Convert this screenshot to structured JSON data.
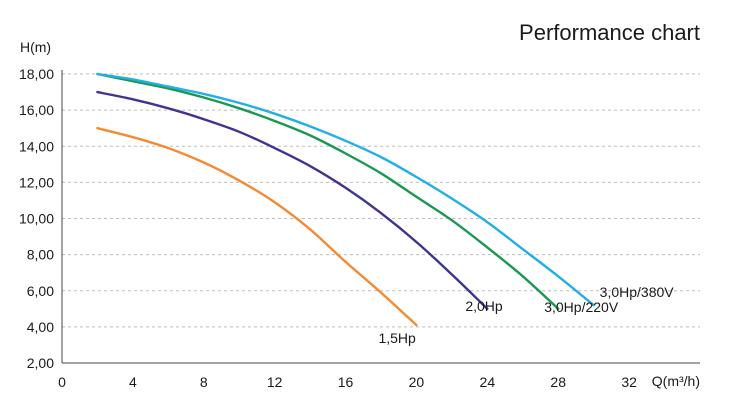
{
  "chart_data": {
    "type": "line",
    "title": "Performance chart",
    "ylabel": "H(m)",
    "xlabel": "Q(m³/h)",
    "xlim": [
      0,
      36
    ],
    "ylim": [
      2,
      18
    ],
    "x_ticks": [
      0,
      4,
      8,
      12,
      16,
      20,
      24,
      28,
      32
    ],
    "x_tick_labels": [
      "0",
      "4",
      "8",
      "12",
      "16",
      "20",
      "24",
      "28",
      "32"
    ],
    "y_ticks": [
      2,
      4,
      6,
      8,
      10,
      12,
      14,
      16,
      18
    ],
    "y_tick_labels": [
      "2,00",
      "4,00",
      "6,00",
      "8,00",
      "10,00",
      "12,00",
      "14,00",
      "16,00",
      "18,00"
    ],
    "grid": true,
    "series": [
      {
        "name": "1,5Hp",
        "color": "#f58a35",
        "x": [
          2,
          4,
          6,
          8,
          10,
          12,
          14,
          16,
          18,
          20
        ],
        "y": [
          15.0,
          14.5,
          13.9,
          13.1,
          12.1,
          10.9,
          9.4,
          7.6,
          5.9,
          4.1
        ]
      },
      {
        "name": "2,0Hp",
        "color": "#3d3591",
        "x": [
          2,
          4,
          6,
          8,
          10,
          12,
          14,
          16,
          18,
          20,
          22,
          24
        ],
        "y": [
          17.0,
          16.6,
          16.1,
          15.5,
          14.8,
          13.9,
          12.9,
          11.7,
          10.3,
          8.7,
          6.9,
          5.0
        ]
      },
      {
        "name": "3,0Hp/220V",
        "color": "#1a9850",
        "x": [
          2,
          4,
          6,
          8,
          10,
          12,
          14,
          16,
          18,
          20,
          22,
          24,
          26,
          28
        ],
        "y": [
          18.0,
          17.6,
          17.2,
          16.7,
          16.1,
          15.4,
          14.6,
          13.6,
          12.5,
          11.2,
          9.9,
          8.4,
          6.8,
          5.0
        ]
      },
      {
        "name": "3,0Hp/380V",
        "color": "#22aee6",
        "x": [
          2,
          4,
          6,
          8,
          10,
          12,
          14,
          16,
          18,
          20,
          22,
          24,
          26,
          28,
          30
        ],
        "y": [
          18.0,
          17.7,
          17.3,
          16.9,
          16.4,
          15.8,
          15.1,
          14.3,
          13.4,
          12.3,
          11.1,
          9.8,
          8.3,
          6.8,
          5.2
        ]
      }
    ]
  }
}
